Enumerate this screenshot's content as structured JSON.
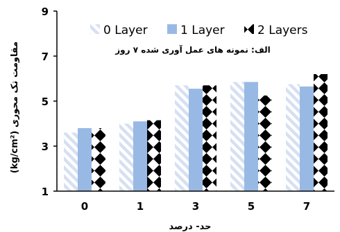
{
  "chart_data": {
    "type": "bar",
    "title": "",
    "subtitle": "الف: نمونه های عمل آوری شده ۷ روز",
    "xlabel": "حد- درصد",
    "ylabel": "مقاومت تک محوری (kg/cm²)",
    "categories": [
      "0",
      "1",
      "3",
      "5",
      "7"
    ],
    "ylim": [
      1,
      9
    ],
    "yticks": [
      1,
      3,
      5,
      7,
      9
    ],
    "legend_position": "top",
    "series": [
      {
        "name": "0 Layer",
        "values": [
          3.6,
          4.0,
          5.7,
          5.85,
          5.75
        ],
        "pattern": "diagonal-stripes",
        "color": "#d6e0f2"
      },
      {
        "name": "1 Layer",
        "values": [
          3.8,
          4.1,
          5.55,
          5.85,
          5.65
        ],
        "pattern": "solid",
        "color": "#99b9e5"
      },
      {
        "name": "2 Layers",
        "values": [
          3.8,
          4.15,
          5.7,
          5.25,
          6.2
        ],
        "pattern": "black-diamonds",
        "color": "#000000"
      }
    ]
  }
}
